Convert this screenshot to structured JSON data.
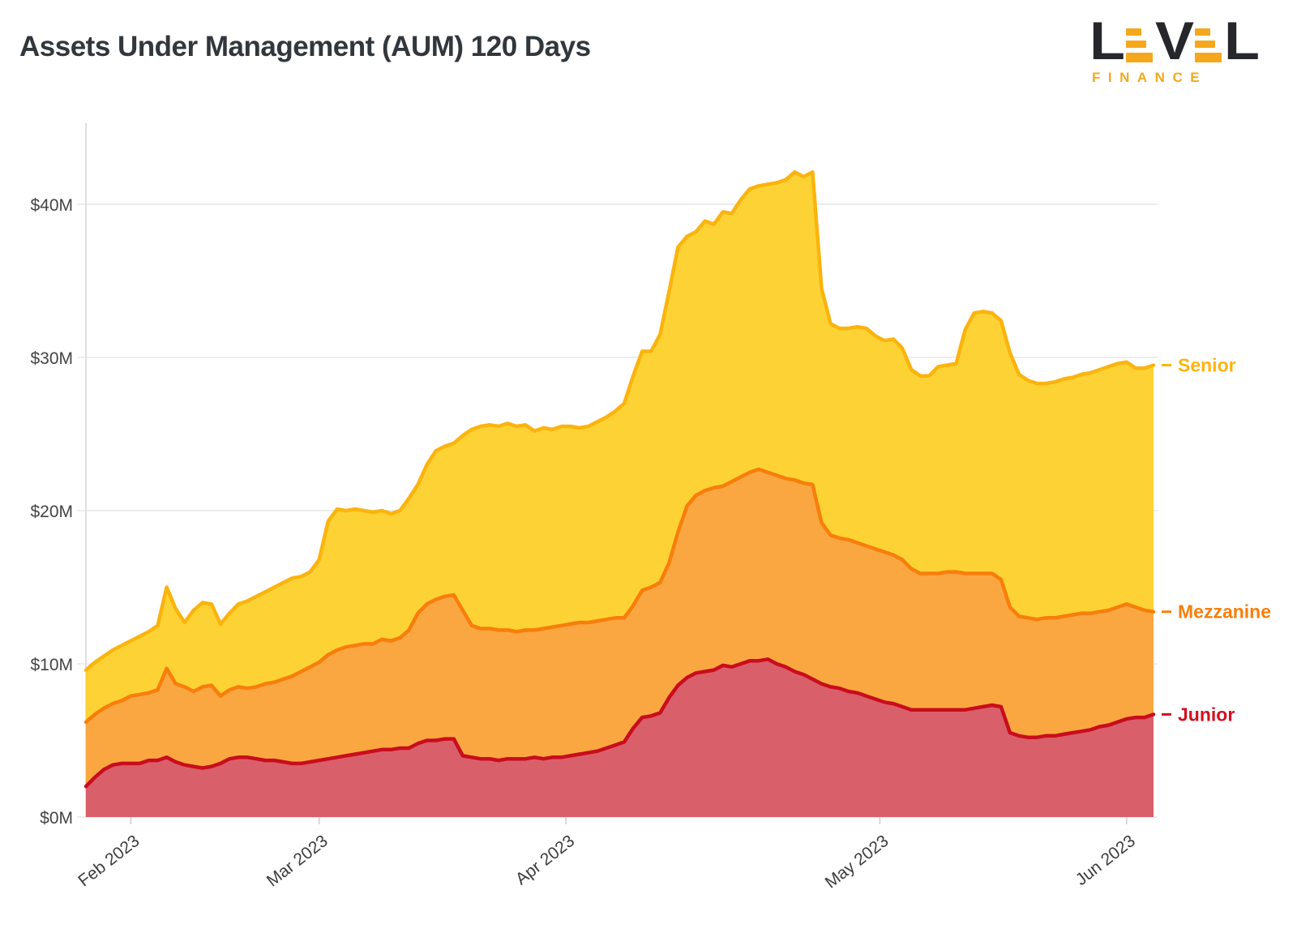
{
  "header": {
    "title": "Assets Under Management (AUM) 120 Days"
  },
  "logo": {
    "letters": [
      "L",
      "E",
      "V",
      "E",
      "L"
    ],
    "subtitle": "FINANCE",
    "dark_color": "#26272b",
    "accent_color": "#f5a81c"
  },
  "chart_data": {
    "type": "area",
    "stacked": true,
    "title": "Assets Under Management (AUM) 120 Days",
    "x_unit": "day_index",
    "x_count": 120,
    "x_tick_positions": [
      5,
      26,
      53.5,
      88.5,
      116
    ],
    "x_tick_labels": [
      "Feb 2023",
      "Mar 2023",
      "Apr 2023",
      "May 2023",
      "Jun 2023"
    ],
    "y_ticks": [
      0,
      10,
      20,
      30,
      40
    ],
    "y_tick_labels": [
      "$0M",
      "$10M",
      "$20M",
      "$30M",
      "$40M"
    ],
    "ylim": [
      0,
      45.3
    ],
    "grid": "horizontal",
    "legend_position": "right-edge-labels",
    "series": [
      {
        "name": "Junior",
        "fill": "#d9606a",
        "stroke": "#c90d1d",
        "label_color": "#d70e21",
        "values": [
          2.0,
          2.6,
          3.1,
          3.4,
          3.5,
          3.5,
          3.5,
          3.7,
          3.7,
          3.9,
          3.6,
          3.4,
          3.3,
          3.2,
          3.3,
          3.5,
          3.8,
          3.9,
          3.9,
          3.8,
          3.7,
          3.7,
          3.6,
          3.5,
          3.5,
          3.6,
          3.7,
          3.8,
          3.9,
          4.0,
          4.1,
          4.2,
          4.3,
          4.4,
          4.4,
          4.5,
          4.5,
          4.8,
          5.0,
          5.0,
          5.1,
          5.1,
          4.0,
          3.9,
          3.8,
          3.8,
          3.7,
          3.8,
          3.8,
          3.8,
          3.9,
          3.8,
          3.9,
          3.9,
          4.0,
          4.1,
          4.2,
          4.3,
          4.5,
          4.7,
          4.9,
          5.8,
          6.5,
          6.6,
          6.8,
          7.8,
          8.6,
          9.1,
          9.4,
          9.5,
          9.6,
          9.9,
          9.8,
          10.0,
          10.2,
          10.2,
          10.3,
          10.0,
          9.8,
          9.5,
          9.3,
          9.0,
          8.7,
          8.5,
          8.4,
          8.2,
          8.1,
          7.9,
          7.7,
          7.5,
          7.4,
          7.2,
          7.0,
          7.0,
          7.0,
          7.0,
          7.0,
          7.0,
          7.0,
          7.1,
          7.2,
          7.3,
          7.2,
          5.5,
          5.3,
          5.2,
          5.2,
          5.3,
          5.3,
          5.4,
          5.5,
          5.6,
          5.7,
          5.9,
          6.0,
          6.2,
          6.4,
          6.5,
          6.5,
          6.7
        ]
      },
      {
        "name": "Mezzanine",
        "fill": "#faa742",
        "stroke": "#f87e0b",
        "label_color": "#f87e0b",
        "values": [
          4.2,
          4.1,
          4.0,
          4.0,
          4.1,
          4.4,
          4.5,
          4.4,
          4.6,
          5.8,
          5.1,
          5.1,
          4.9,
          5.3,
          5.3,
          4.4,
          4.5,
          4.6,
          4.5,
          4.7,
          5.0,
          5.1,
          5.4,
          5.7,
          6.0,
          6.2,
          6.4,
          6.8,
          7.0,
          7.1,
          7.1,
          7.1,
          7.0,
          7.2,
          7.1,
          7.2,
          7.7,
          8.5,
          8.9,
          9.2,
          9.3,
          9.4,
          9.5,
          8.6,
          8.5,
          8.5,
          8.5,
          8.4,
          8.3,
          8.4,
          8.3,
          8.5,
          8.5,
          8.6,
          8.6,
          8.6,
          8.5,
          8.5,
          8.4,
          8.3,
          8.1,
          8.0,
          8.3,
          8.4,
          8.5,
          8.8,
          10.0,
          11.2,
          11.6,
          11.8,
          11.9,
          11.7,
          12.1,
          12.2,
          12.3,
          12.5,
          12.2,
          12.3,
          12.3,
          12.5,
          12.5,
          12.7,
          10.5,
          9.9,
          9.8,
          9.9,
          9.8,
          9.8,
          9.8,
          9.8,
          9.7,
          9.6,
          9.2,
          8.9,
          8.9,
          8.9,
          9.0,
          9.0,
          8.9,
          8.8,
          8.7,
          8.6,
          8.3,
          8.2,
          7.8,
          7.8,
          7.7,
          7.7,
          7.7,
          7.7,
          7.7,
          7.7,
          7.6,
          7.5,
          7.5,
          7.5,
          7.5,
          7.2,
          7.0,
          6.7
        ]
      },
      {
        "name": "Senior",
        "fill": "#fdd235",
        "stroke": "#fbb40d",
        "label_color": "#fbb40d",
        "values": [
          3.4,
          3.4,
          3.4,
          3.5,
          3.6,
          3.6,
          3.8,
          4.0,
          4.2,
          5.3,
          4.9,
          4.2,
          5.3,
          5.5,
          5.3,
          4.7,
          5.0,
          5.4,
          5.7,
          5.9,
          6.0,
          6.2,
          6.3,
          6.4,
          6.2,
          6.2,
          6.7,
          8.7,
          9.2,
          8.9,
          8.9,
          8.7,
          8.6,
          8.4,
          8.3,
          8.3,
          8.6,
          8.4,
          9.1,
          9.7,
          9.8,
          9.9,
          11.4,
          12.8,
          13.2,
          13.3,
          13.3,
          13.5,
          13.4,
          13.4,
          13.0,
          13.1,
          12.9,
          13.0,
          12.9,
          12.7,
          12.8,
          13.0,
          13.2,
          13.5,
          14.0,
          15.0,
          15.6,
          15.4,
          16.2,
          17.7,
          18.6,
          17.6,
          17.2,
          17.6,
          17.2,
          17.9,
          17.5,
          18.1,
          18.5,
          18.5,
          18.8,
          19.1,
          19.5,
          20.1,
          20.0,
          20.4,
          15.3,
          13.8,
          13.7,
          13.8,
          14.1,
          14.2,
          13.9,
          13.8,
          14.1,
          13.8,
          13.0,
          12.9,
          12.9,
          13.5,
          13.5,
          13.6,
          15.9,
          17.0,
          17.1,
          17.0,
          16.9,
          16.6,
          15.8,
          15.5,
          15.4,
          15.3,
          15.4,
          15.5,
          15.5,
          15.6,
          15.7,
          15.8,
          15.9,
          15.9,
          15.8,
          15.6,
          15.8,
          16.1
        ]
      }
    ],
    "style": {
      "grid_color": "#e7e7e7",
      "spine_color": "#d9d9d9",
      "tick_color": "#d0d0d0",
      "axis_label_color": "#454545",
      "title_color": "#32373c"
    }
  }
}
